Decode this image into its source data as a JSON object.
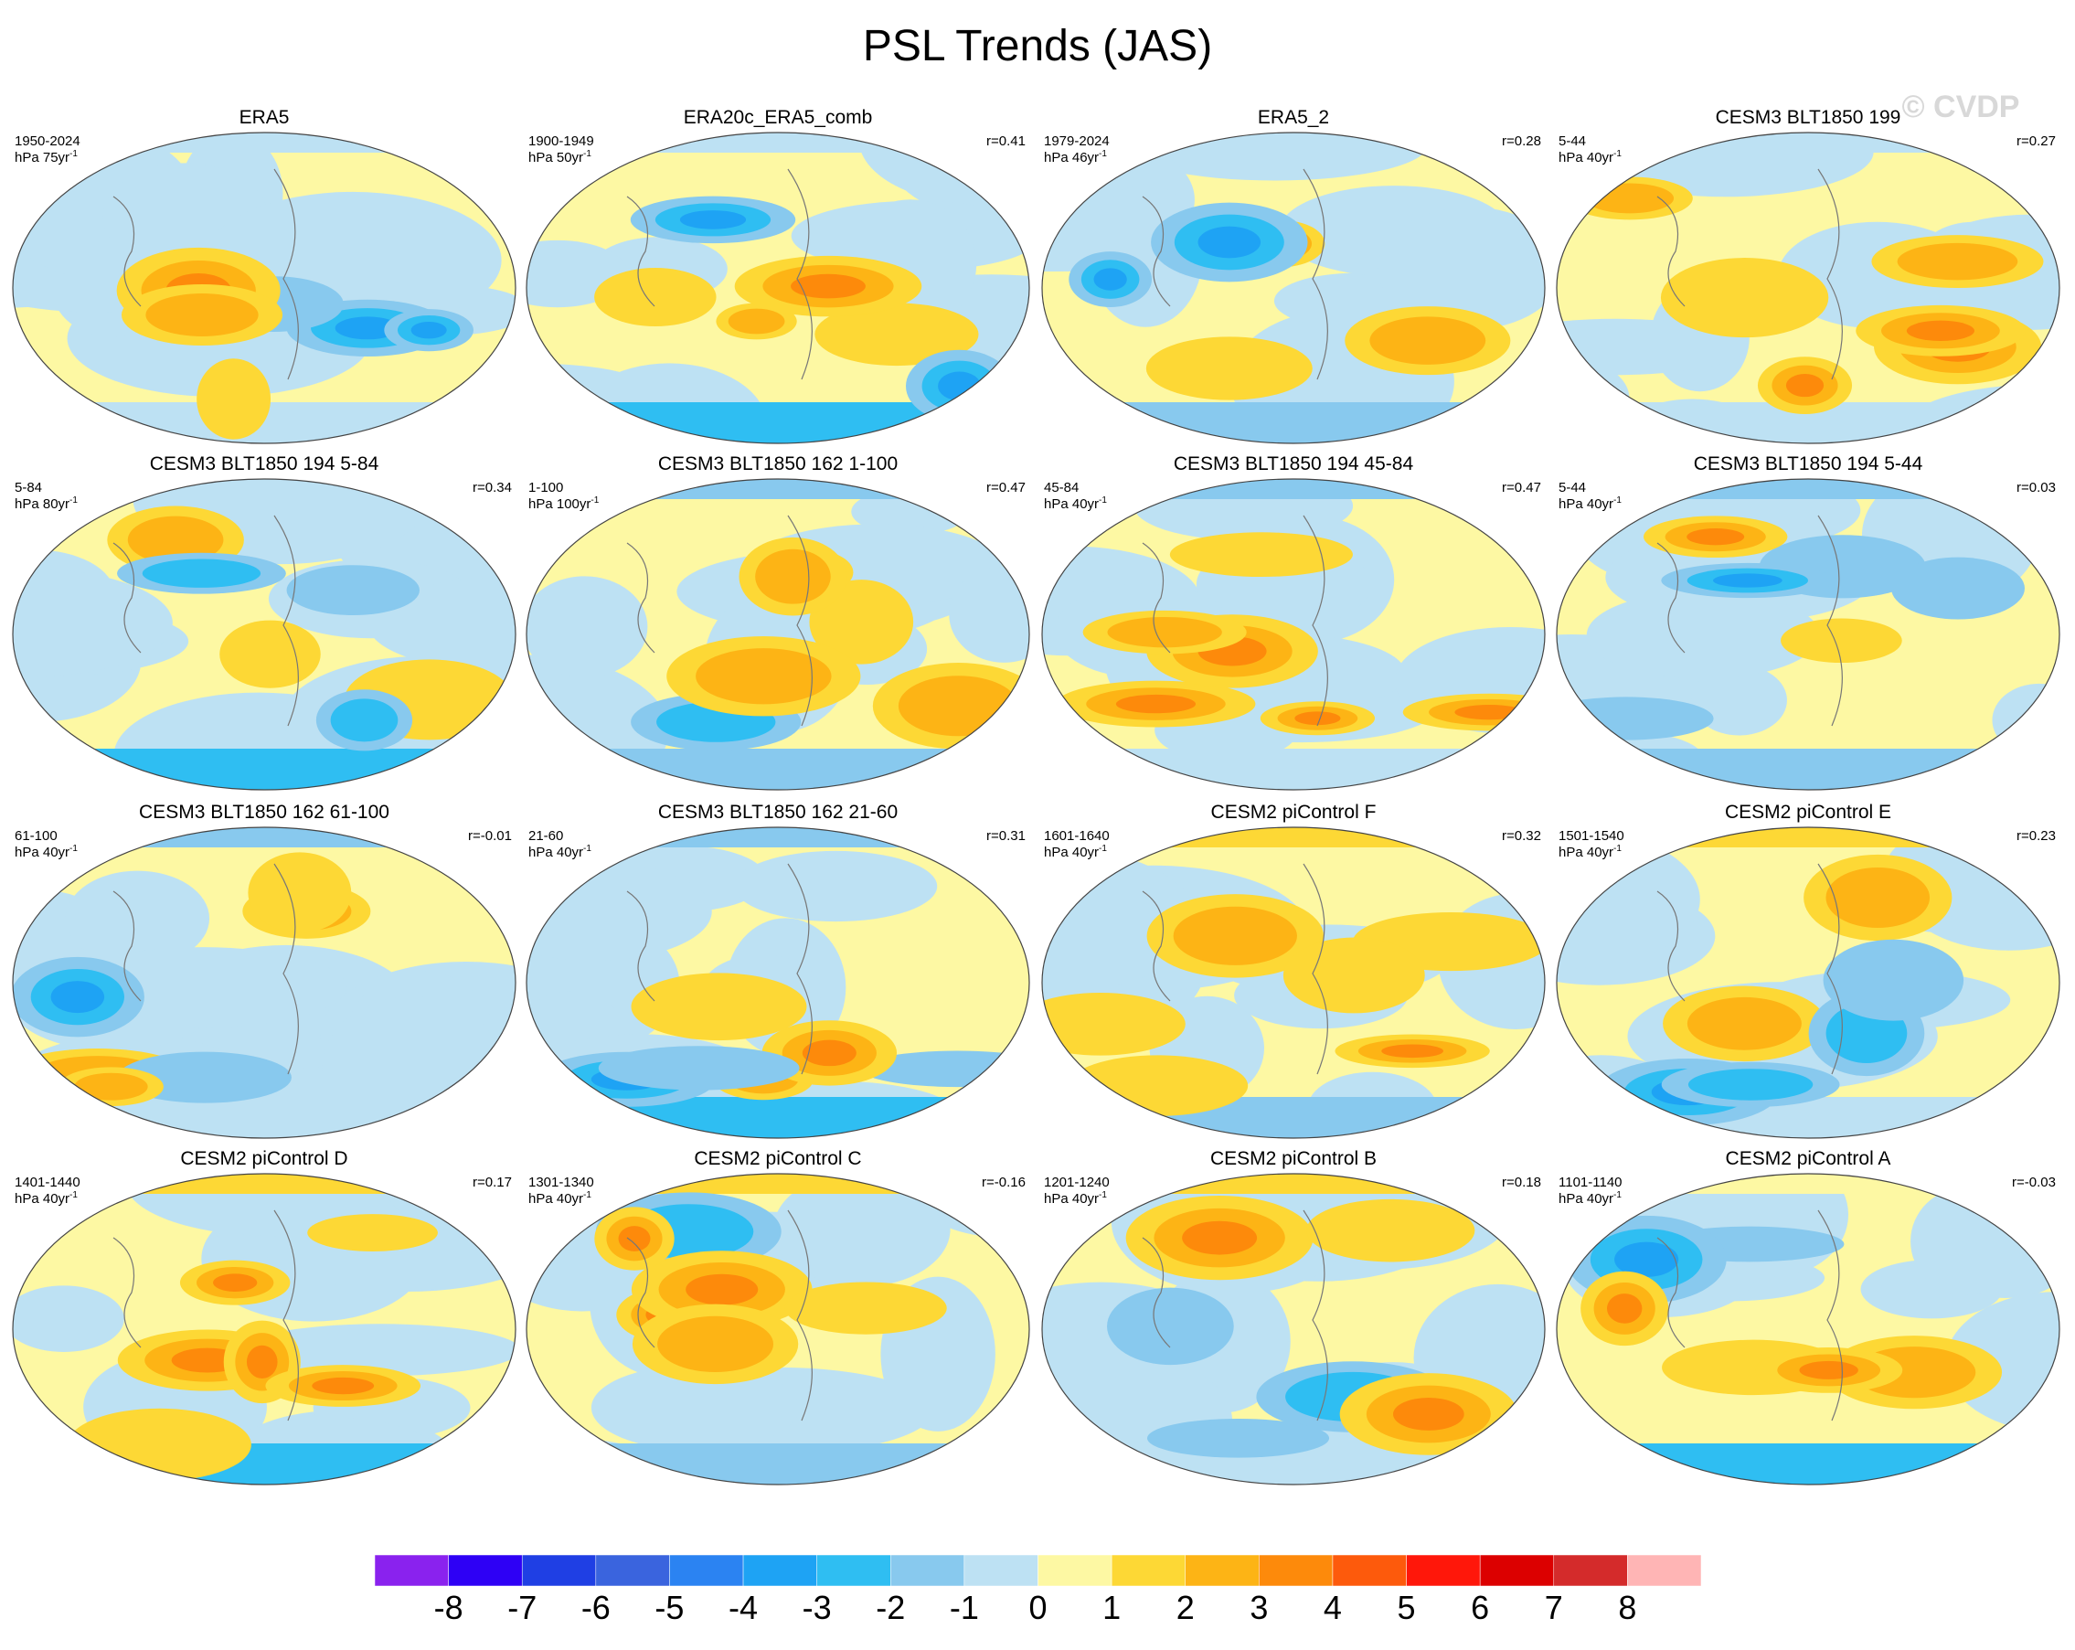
{
  "title": "PSL Trends (JAS)",
  "watermark": "© CVDP",
  "panels": [
    {
      "title": "ERA5",
      "period": "1950-2024",
      "units": "hPa 75yr",
      "units_exponent": "-1",
      "r": null
    },
    {
      "title": "ERA20c_ERA5_comb",
      "period": "1900-1949",
      "units": "hPa 50yr",
      "units_exponent": "-1",
      "r": "r=0.41"
    },
    {
      "title": "ERA5_2",
      "period": "1979-2024",
      "units": "hPa 46yr",
      "units_exponent": "-1",
      "r": "r=0.28"
    },
    {
      "title": "CESM3 BLT1850 199",
      "period": "5-44",
      "units": "hPa 40yr",
      "units_exponent": "-1",
      "r": "r=0.27"
    },
    {
      "title": "CESM3 BLT1850 194 5-84",
      "period": "5-84",
      "units": "hPa 80yr",
      "units_exponent": "-1",
      "r": "r=0.34"
    },
    {
      "title": "CESM3 BLT1850 162 1-100",
      "period": "1-100",
      "units": "hPa 100yr",
      "units_exponent": "-1",
      "r": "r=0.47"
    },
    {
      "title": "CESM3 BLT1850 194 45-84",
      "period": "45-84",
      "units": "hPa 40yr",
      "units_exponent": "-1",
      "r": "r=0.47"
    },
    {
      "title": "CESM3 BLT1850 194 5-44",
      "period": "5-44",
      "units": "hPa 40yr",
      "units_exponent": "-1",
      "r": "r=0.03"
    },
    {
      "title": "CESM3 BLT1850 162 61-100",
      "period": "61-100",
      "units": "hPa 40yr",
      "units_exponent": "-1",
      "r": "r=-0.01"
    },
    {
      "title": "CESM3 BLT1850 162 21-60",
      "period": "21-60",
      "units": "hPa 40yr",
      "units_exponent": "-1",
      "r": "r=0.31"
    },
    {
      "title": "CESM2 piControl F",
      "period": "1601-1640",
      "units": "hPa 40yr",
      "units_exponent": "-1",
      "r": "r=0.32"
    },
    {
      "title": "CESM2 piControl E",
      "period": "1501-1540",
      "units": "hPa 40yr",
      "units_exponent": "-1",
      "r": "r=0.23"
    },
    {
      "title": "CESM2 piControl D",
      "period": "1401-1440",
      "units": "hPa 40yr",
      "units_exponent": "-1",
      "r": "r=0.17"
    },
    {
      "title": "CESM2 piControl C",
      "period": "1301-1340",
      "units": "hPa 40yr",
      "units_exponent": "-1",
      "r": "r=-0.16"
    },
    {
      "title": "CESM2 piControl B",
      "period": "1201-1240",
      "units": "hPa 40yr",
      "units_exponent": "-1",
      "r": "r=0.18"
    },
    {
      "title": "CESM2 piControl A",
      "period": "1101-1140",
      "units": "hPa 40yr",
      "units_exponent": "-1",
      "r": "r=-0.03"
    }
  ],
  "colorbar": {
    "levels": [
      -8,
      -7,
      -6,
      -5,
      -4,
      -3,
      -2,
      -1,
      0,
      1,
      2,
      3,
      4,
      5,
      6,
      7,
      8
    ],
    "colors": [
      "#8a22ee",
      "#2e00f5",
      "#1f3fe4",
      "#3a64de",
      "#2b83f2",
      "#1ea3f4",
      "#2fbef2",
      "#88c9ee",
      "#bde1f3",
      "#fdf8a3",
      "#fdd835",
      "#fdb415",
      "#fd8a0b",
      "#fd5a0c",
      "#ff170a",
      "#dc0000",
      "#d42b2b",
      "#ffb5b5"
    ]
  }
}
